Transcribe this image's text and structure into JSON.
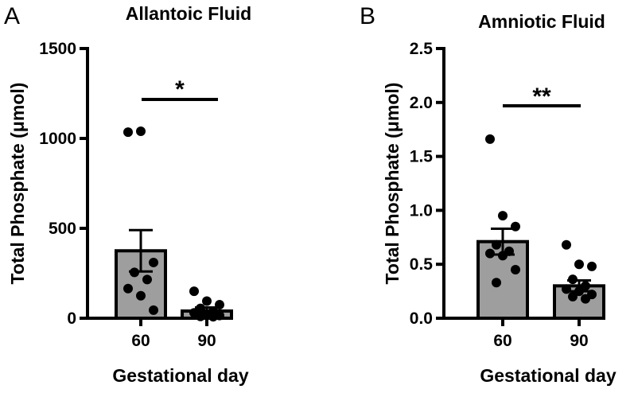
{
  "chart_data": [
    {
      "type": "bar",
      "panel": "A",
      "title": "Allantoic Fluid",
      "xlabel": "Gestational day",
      "ylabel": "Total Phosphate (μmol)",
      "ylim": [
        0,
        1500
      ],
      "yticks": [
        0,
        500,
        1000,
        1500
      ],
      "categories": [
        "60",
        "90"
      ],
      "values": [
        375,
        40
      ],
      "sem": [
        115,
        20
      ],
      "points": [
        [
          1035,
          1040,
          310,
          255,
          215,
          165,
          125,
          45
        ],
        [
          150,
          95,
          75,
          55,
          40,
          30,
          25,
          15,
          10,
          8
        ]
      ],
      "bar_color": "#9e9e9e",
      "significance": "*"
    },
    {
      "type": "bar",
      "panel": "B",
      "title": "Amniotic Fluid",
      "xlabel": "Gestational day",
      "ylabel": "Total Phosphate (μmol)",
      "ylim": [
        0,
        2.5
      ],
      "yticks": [
        "0.0",
        "0.5",
        "1.0",
        "1.5",
        "2.0",
        "2.5"
      ],
      "categories": [
        "60",
        "90"
      ],
      "values": [
        0.71,
        0.3
      ],
      "sem": [
        0.12,
        0.05
      ],
      "points": [
        [
          1.66,
          0.95,
          0.85,
          0.68,
          0.62,
          0.6,
          0.58,
          0.45,
          0.33
        ],
        [
          0.68,
          0.5,
          0.48,
          0.36,
          0.3,
          0.27,
          0.25,
          0.22,
          0.2,
          0.18
        ]
      ],
      "bar_color": "#9e9e9e",
      "significance": "**"
    }
  ]
}
